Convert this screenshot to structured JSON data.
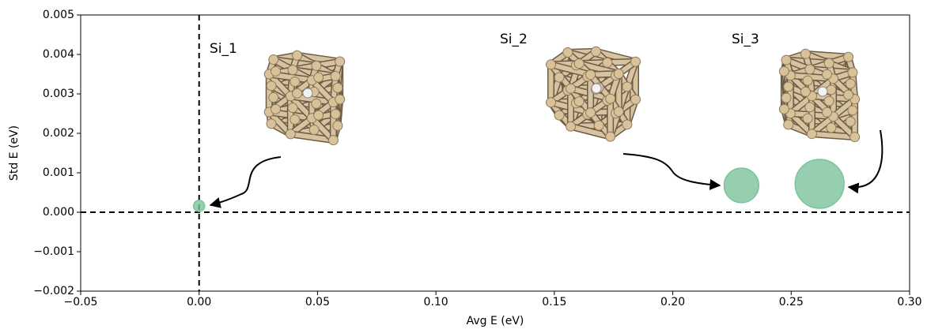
{
  "chart_data": {
    "type": "scatter",
    "xlabel": "Avg E (eV)",
    "ylabel": "Std E (eV)",
    "xlim": [
      -0.05,
      0.3
    ],
    "ylim": [
      -0.002,
      0.005
    ],
    "xticks": [
      {
        "value": -0.05,
        "label": "−0.05"
      },
      {
        "value": 0.0,
        "label": "0.00"
      },
      {
        "value": 0.05,
        "label": "0.05"
      },
      {
        "value": 0.1,
        "label": "0.10"
      },
      {
        "value": 0.15,
        "label": "0.15"
      },
      {
        "value": 0.2,
        "label": "0.20"
      },
      {
        "value": 0.25,
        "label": "0.25"
      },
      {
        "value": 0.3,
        "label": "0.30"
      }
    ],
    "yticks": [
      {
        "value": -0.002,
        "label": "−0.002"
      },
      {
        "value": -0.001,
        "label": "−0.001"
      },
      {
        "value": 0.0,
        "label": "0.000"
      },
      0.001,
      0.002,
      0.003,
      0.004,
      0.005
    ],
    "reference_lines": {
      "x": 0,
      "y": 0
    },
    "color": "#7cc39c",
    "points": {
      "labels": [
        "Si_1",
        "Si_2",
        "Si_3"
      ],
      "x": [
        0.0,
        0.229,
        0.262
      ],
      "y": [
        0.00016,
        0.00068,
        0.00072
      ],
      "sizes": [
        50,
        480,
        960
      ]
    }
  }
}
